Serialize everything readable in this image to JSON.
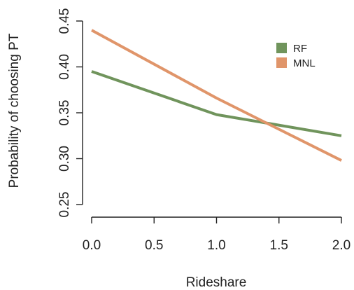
{
  "chart_data": {
    "type": "line",
    "title": "",
    "xlabel": "Rideshare",
    "ylabel": "Probability of choosing PT",
    "x": [
      0.0,
      1.0,
      2.0
    ],
    "xlim": [
      0.0,
      2.0
    ],
    "ylim": [
      0.25,
      0.45
    ],
    "xticks": [
      "0.0",
      "0.5",
      "1.0",
      "1.5",
      "2.0"
    ],
    "yticks": [
      "0.25",
      "0.30",
      "0.35",
      "0.40",
      "0.45"
    ],
    "grid": false,
    "legend_position": "top-right",
    "series": [
      {
        "name": "RF",
        "color": "#70945c",
        "values": [
          0.395,
          0.348,
          0.325
        ]
      },
      {
        "name": "MNL",
        "color": "#e0956a",
        "values": [
          0.44,
          0.366,
          0.298
        ]
      }
    ]
  }
}
